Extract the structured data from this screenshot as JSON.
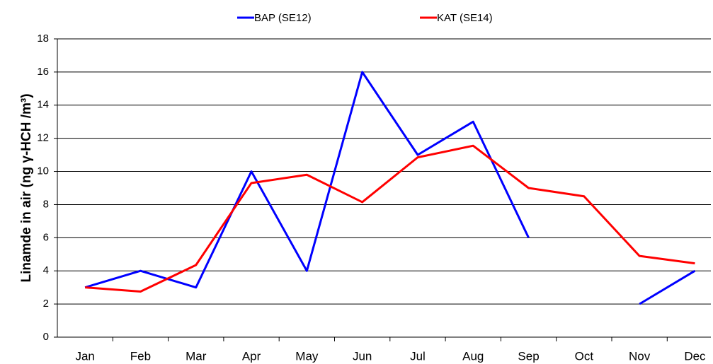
{
  "chart_data": {
    "type": "line",
    "y_label": "Linamde in air (ng γ-HCH /m³)",
    "categories": [
      "Jan",
      "Feb",
      "Mar",
      "Apr",
      "May",
      "Jun",
      "Jul",
      "Aug",
      "Sep",
      "Oct",
      "Nov",
      "Dec"
    ],
    "series": [
      {
        "name": "BAP (SE12)",
        "color": "#0000ff",
        "values": [
          3,
          4,
          3,
          10,
          4,
          16,
          11,
          13,
          6,
          null,
          2,
          4
        ]
      },
      {
        "name": "KAT (SE14)",
        "color": "#ff0000",
        "values": [
          3,
          2.75,
          4.35,
          9.3,
          9.8,
          8.15,
          10.85,
          11.55,
          9,
          8.5,
          4.9,
          4.45
        ]
      }
    ],
    "ylim": [
      0,
      18
    ],
    "yticks": [
      0,
      2,
      4,
      6,
      8,
      10,
      12,
      14,
      16,
      18
    ],
    "grid": true,
    "legend": "top"
  }
}
